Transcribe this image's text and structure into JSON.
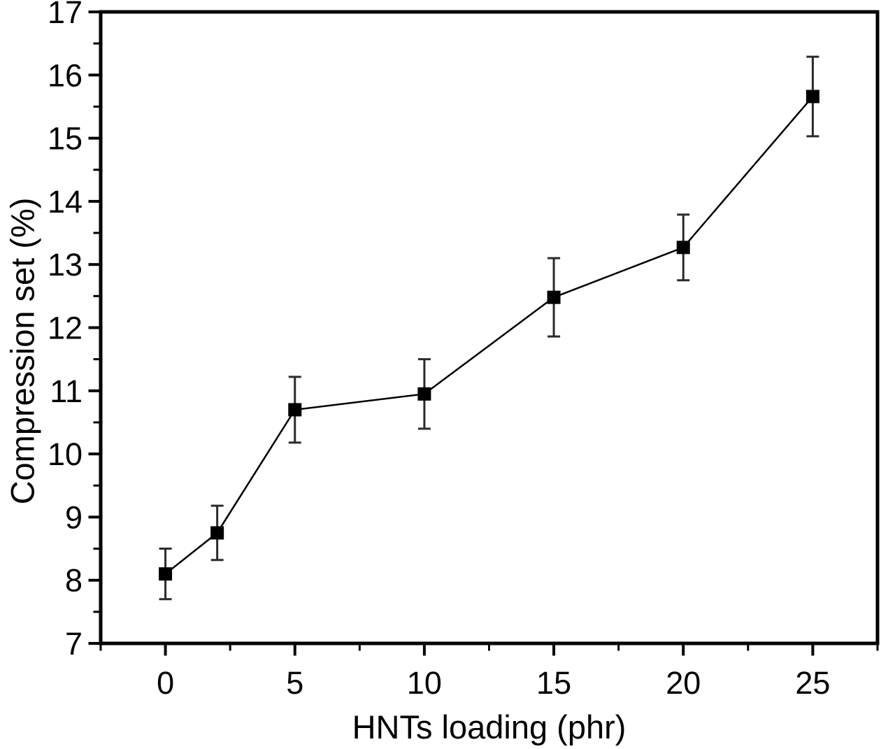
{
  "figure": {
    "background": "#ffffff"
  },
  "chart_data": {
    "type": "line",
    "title": "",
    "xlabel": "HNTs loading (phr)",
    "ylabel": "Compression set (%)",
    "series": [
      {
        "name": "compression-set-vs-hnts-loading",
        "x": [
          0,
          2,
          5,
          10,
          15,
          20,
          25
        ],
        "y": [
          8.1,
          8.75,
          10.7,
          10.95,
          12.48,
          13.27,
          15.66
        ],
        "yerr": [
          0.4,
          0.43,
          0.52,
          0.55,
          0.62,
          0.52,
          0.63
        ],
        "marker": "filled-square",
        "color": "#000000"
      }
    ],
    "xlim": [
      -2.5,
      27.5
    ],
    "ylim": [
      7,
      17
    ],
    "x_major_ticks": [
      0,
      5,
      10,
      15,
      20,
      25
    ],
    "x_tick_labels": [
      "0",
      "5",
      "10",
      "15",
      "20",
      "25"
    ],
    "x_minor_tick_step": 2.5,
    "y_major_tick_step": 1,
    "y_minor_tick_step": 0.5,
    "y_tick_labels": [
      "7",
      "8",
      "9",
      "10",
      "11",
      "12",
      "13",
      "14",
      "15",
      "16",
      "17"
    ],
    "grid": false,
    "legend": null,
    "axis_color": "#000000",
    "errorbar_color": "#2b2b2b",
    "tick_label_color": "#000000"
  }
}
